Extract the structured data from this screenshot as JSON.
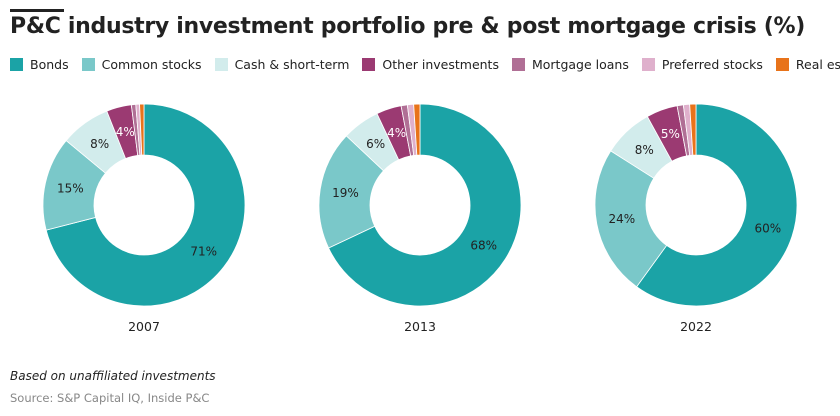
{
  "title": "P&C industry investment portfolio pre & post mortgage crisis (%)",
  "note": "Based on unaffiliated investments",
  "source": "Source: S&P Capital IQ, Inside P&C",
  "chart_data": {
    "type": "pie",
    "subtype": "donut",
    "title": "P&C industry investment portfolio pre & post mortgage crisis (%)",
    "legend_position": "top",
    "categories": [
      "Bonds",
      "Common stocks",
      "Cash & short-term",
      "Other investments",
      "Mortgage loans",
      "Preferred stocks",
      "Real estate"
    ],
    "colors": [
      "#1ba3a6",
      "#7ac8c9",
      "#d2ecec",
      "#9b3a72",
      "#b06f95",
      "#dfb0cc",
      "#e8731a"
    ],
    "charts": [
      {
        "label": "2007",
        "values": [
          71,
          15,
          8,
          4,
          0.7,
          0.6,
          0.7
        ],
        "data_labels": [
          "71%",
          "15%",
          "8%",
          "4%",
          "",
          "",
          ""
        ]
      },
      {
        "label": "2013",
        "values": [
          68,
          19,
          6,
          4,
          1,
          1,
          1
        ],
        "data_labels": [
          "68%",
          "19%",
          "6%",
          "4%",
          "",
          "",
          ""
        ]
      },
      {
        "label": "2022",
        "values": [
          60,
          24,
          8,
          5,
          1,
          1,
          1
        ],
        "data_labels": [
          "60%",
          "24%",
          "8%",
          "5%",
          "",
          "",
          ""
        ]
      }
    ]
  }
}
